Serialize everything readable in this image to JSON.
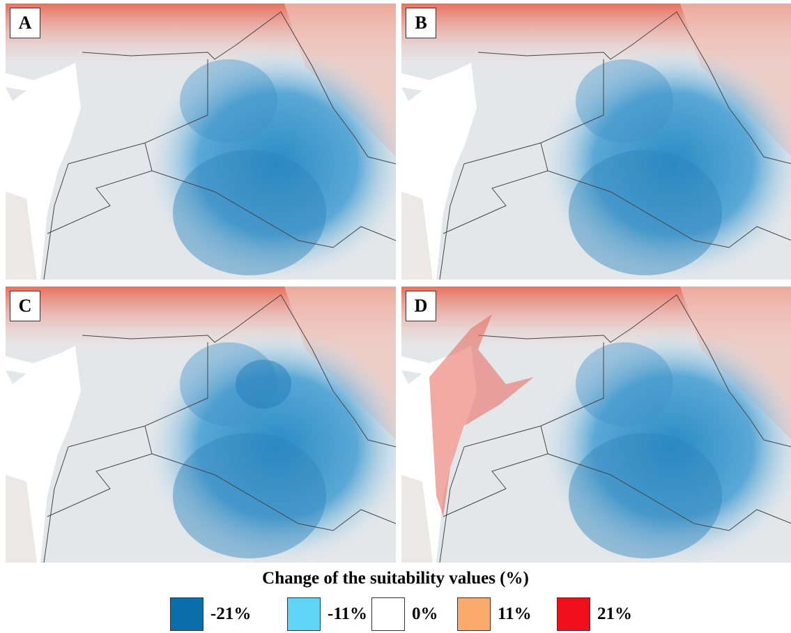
{
  "panels": [
    {
      "label": "A"
    },
    {
      "label": "B"
    },
    {
      "label": "C"
    },
    {
      "label": "D"
    }
  ],
  "legend": {
    "title": "Change of the suitability values  (%)",
    "items": [
      {
        "label": "-21%",
        "color": "#0b6fae"
      },
      {
        "label": "-11%",
        "color": "#5fd4f5"
      },
      {
        "label": "0%",
        "color": "#ffffff"
      },
      {
        "label": "11%",
        "color": "#fbaa6e"
      },
      {
        "label": "21%",
        "color": "#f0101c"
      }
    ]
  }
}
